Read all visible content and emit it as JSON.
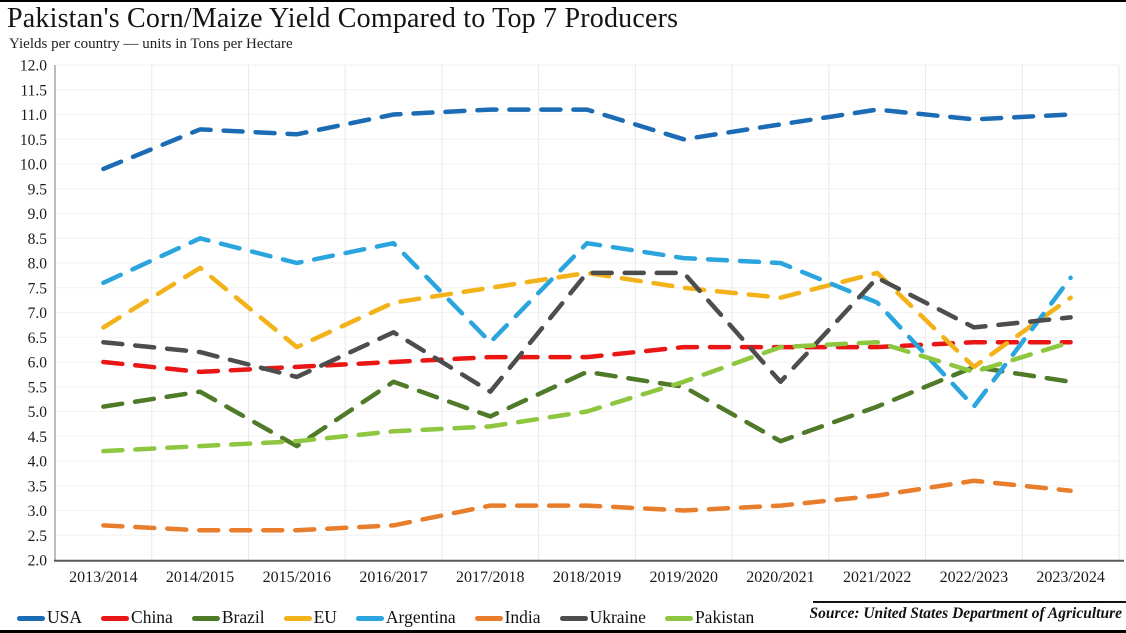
{
  "header": {
    "title": "Pakistan's Corn/Maize Yield Compared to Top 7 Producers",
    "subtitle": "Yields per country — units in Tons per Hectare"
  },
  "source": "Source: United States Department of Agriculture",
  "chart_data": {
    "type": "line",
    "title": "Pakistan's Corn/Maize Yield Compared to Top 7 Producers",
    "subtitle": "Yields per country — units in Tons per Hectare",
    "line_style": "dashed",
    "grid": true,
    "legend_position": "bottom",
    "xlabel": "",
    "ylabel": "Tons per Hectare",
    "ylim": [
      2.0,
      12.0
    ],
    "y_tick_step": 0.5,
    "y_tick_labels": [
      "12.0",
      "11.5",
      "11.0",
      "10.5",
      "10.0",
      "9.5",
      "9.0",
      "8.5",
      "8.0",
      "7.5",
      "7.0",
      "6.5",
      "6.0",
      "5.5",
      "5.0",
      "4.5",
      "4.0",
      "3.5",
      "3.0",
      "2.5",
      "2.0"
    ],
    "categories": [
      "2013/2014",
      "2014/2015",
      "2015/2016",
      "2016/2017",
      "2017/2018",
      "2018/2019",
      "2019/2020",
      "2020/2021",
      "2021/2022",
      "2022/2023",
      "2023/2024"
    ],
    "series": [
      {
        "name": "USA",
        "color": "#1b6bb5",
        "values": [
          9.9,
          10.7,
          10.6,
          11.0,
          11.1,
          11.1,
          10.5,
          10.8,
          11.1,
          10.9,
          11.0
        ]
      },
      {
        "name": "China",
        "color": "#ea1515",
        "values": [
          6.0,
          5.8,
          5.9,
          6.0,
          6.1,
          6.1,
          6.3,
          6.3,
          6.3,
          6.4,
          6.4
        ]
      },
      {
        "name": "Brazil",
        "color": "#4f7a28",
        "values": [
          5.1,
          5.4,
          4.3,
          5.6,
          4.9,
          5.8,
          5.5,
          4.4,
          5.1,
          5.9,
          5.6
        ]
      },
      {
        "name": "EU",
        "color": "#f3b21a",
        "values": [
          6.7,
          7.9,
          6.3,
          7.2,
          7.5,
          7.8,
          7.5,
          7.3,
          7.8,
          5.9,
          7.3
        ]
      },
      {
        "name": "Argentina",
        "color": "#2aa5de",
        "values": [
          7.6,
          8.5,
          8.0,
          8.4,
          6.4,
          8.4,
          8.1,
          8.0,
          7.2,
          5.1,
          7.7
        ]
      },
      {
        "name": "India",
        "color": "#e87d2c",
        "values": [
          2.7,
          2.6,
          2.6,
          2.7,
          3.1,
          3.1,
          3.0,
          3.1,
          3.3,
          3.6,
          3.4
        ]
      },
      {
        "name": "Ukraine",
        "color": "#4d4d4d",
        "values": [
          6.4,
          6.2,
          5.7,
          6.6,
          5.4,
          7.8,
          7.8,
          5.6,
          7.7,
          6.7,
          6.9
        ]
      },
      {
        "name": "Pakistan",
        "color": "#8ec640",
        "values": [
          4.2,
          4.3,
          4.4,
          4.6,
          4.7,
          5.0,
          5.6,
          6.3,
          6.4,
          5.8,
          6.4
        ]
      }
    ]
  }
}
